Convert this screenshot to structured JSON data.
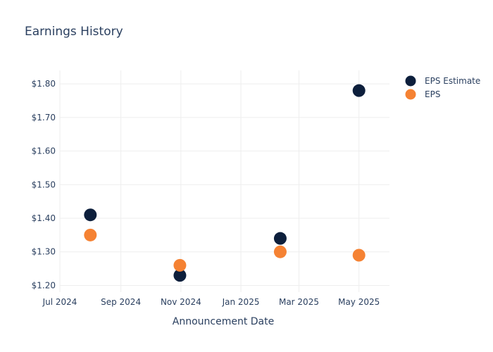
{
  "chart_data": {
    "type": "scatter",
    "title": "Earnings History",
    "xlabel": "Announcement Date",
    "ylabel": "",
    "x_ticks": [
      "Jul 2024",
      "Sep 2024",
      "Nov 2024",
      "Jan 2025",
      "Mar 2025",
      "May 2025"
    ],
    "y_ticks": [
      "$1.20",
      "$1.30",
      "$1.40",
      "$1.50",
      "$1.60",
      "$1.70",
      "$1.80"
    ],
    "ylim": [
      1.18,
      1.84
    ],
    "xlim": [
      "2024-07-01",
      "2025-06-01"
    ],
    "grid": true,
    "legend_position": "top-right",
    "series": [
      {
        "name": "EPS Estimate",
        "color": "#0d1f3c",
        "points": [
          {
            "x": "2024-08-01",
            "y": 1.41
          },
          {
            "x": "2024-10-31",
            "y": 1.23
          },
          {
            "x": "2025-02-10",
            "y": 1.34
          },
          {
            "x": "2025-05-01",
            "y": 1.78
          }
        ]
      },
      {
        "name": "EPS",
        "color": "#f58233",
        "points": [
          {
            "x": "2024-08-01",
            "y": 1.35
          },
          {
            "x": "2024-10-31",
            "y": 1.26
          },
          {
            "x": "2025-02-10",
            "y": 1.3
          },
          {
            "x": "2025-05-01",
            "y": 1.29
          }
        ]
      }
    ]
  }
}
